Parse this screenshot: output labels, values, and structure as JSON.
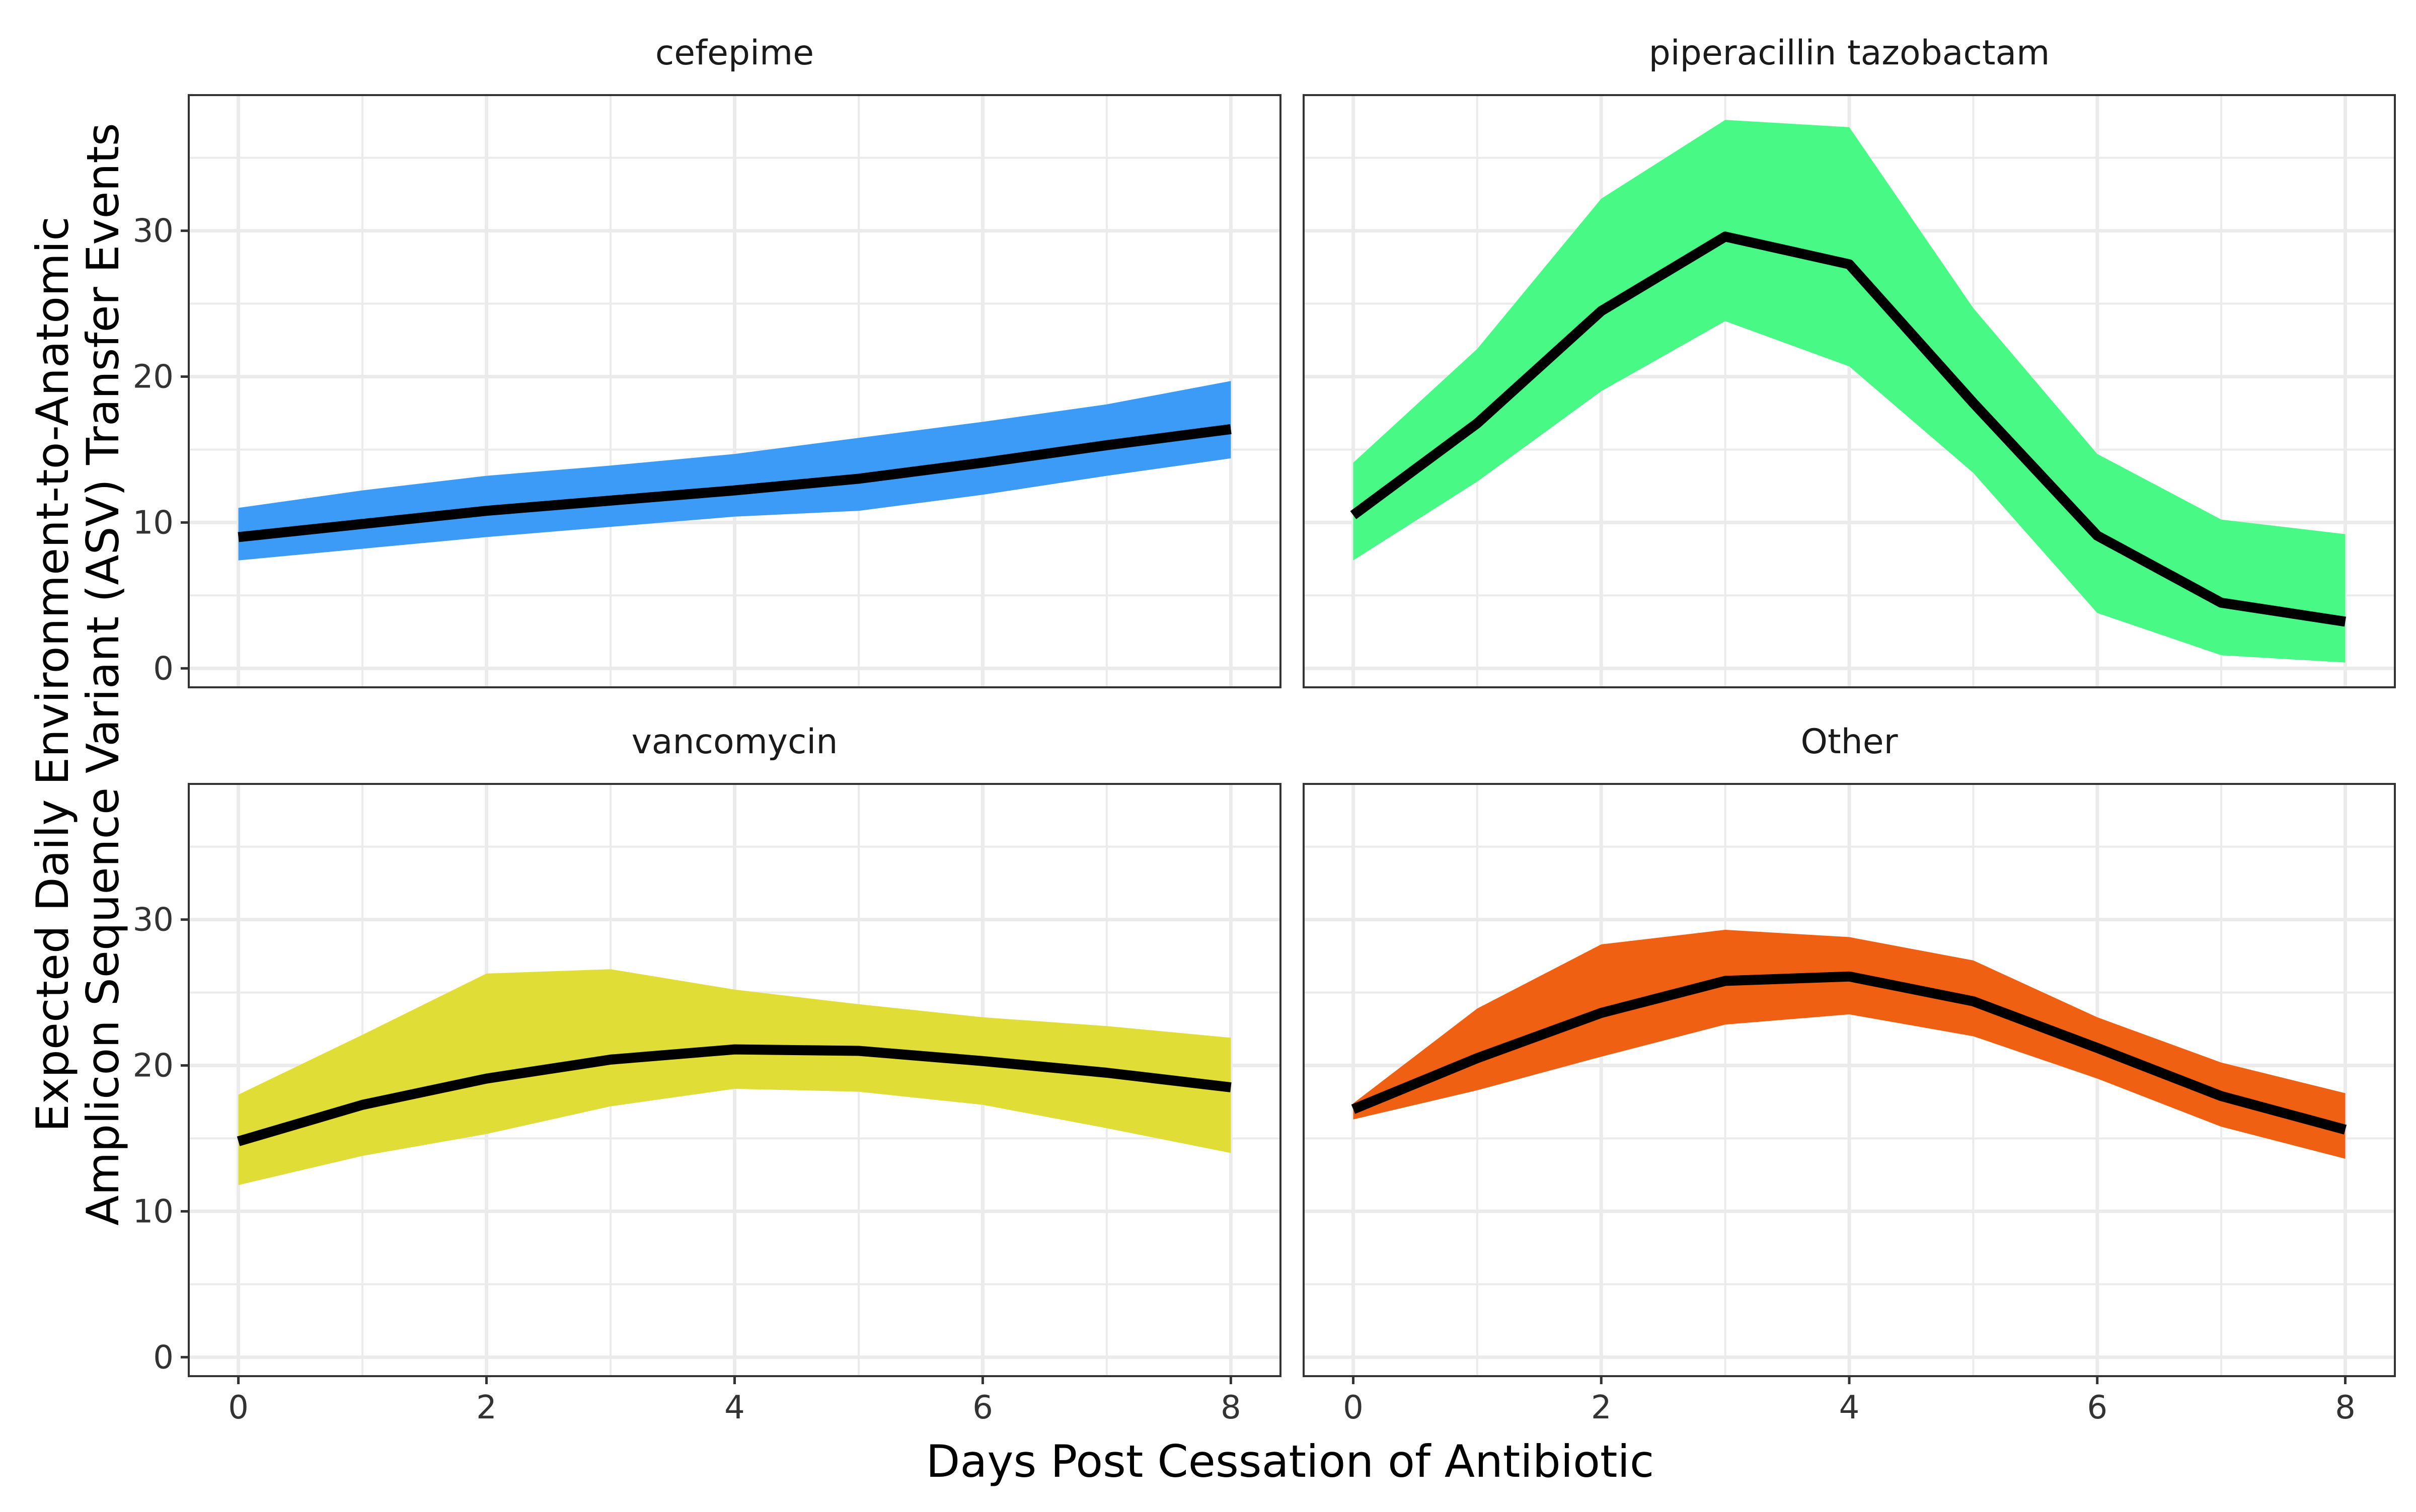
{
  "chart_data": {
    "type": "area",
    "xlabel": "Days Post Cessation of Antibiotic",
    "ylabel": [
      "Expected Daily Environment-to-Anatomic",
      "Amplicon Sequence Variant (ASV) Transfer Events"
    ],
    "xlim": [
      -0.4,
      8.4
    ],
    "ylim": [
      -1.3,
      39.3
    ],
    "xticks": [
      0,
      2,
      4,
      6,
      8
    ],
    "yticks": [
      0,
      10,
      20,
      30
    ],
    "grid": true,
    "x": [
      0,
      1,
      2,
      3,
      4,
      5,
      6,
      7,
      8
    ],
    "panels": [
      {
        "title": "cefepime",
        "color": "#3d9bf8",
        "mean": [
          9.0,
          9.9,
          10.8,
          11.5,
          12.2,
          13.0,
          14.1,
          15.3,
          16.4
        ],
        "lower": [
          7.4,
          8.2,
          9.0,
          9.7,
          10.4,
          10.8,
          11.9,
          13.2,
          14.4
        ],
        "upper": [
          11.0,
          12.2,
          13.2,
          13.9,
          14.7,
          15.8,
          16.9,
          18.1,
          19.7
        ]
      },
      {
        "title": "piperacillin tazobactam",
        "color": "#49f985",
        "mean": [
          10.5,
          16.8,
          24.5,
          29.6,
          27.7,
          18.2,
          9.1,
          4.5,
          3.2
        ],
        "lower": [
          7.4,
          12.8,
          19.0,
          23.8,
          20.7,
          13.4,
          3.8,
          0.9,
          0.4
        ],
        "upper": [
          14.1,
          21.9,
          32.2,
          37.6,
          37.1,
          24.7,
          14.7,
          10.2,
          9.2
        ]
      },
      {
        "title": "vancomycin",
        "color": "#e0de36",
        "mean": [
          14.8,
          17.3,
          19.1,
          20.4,
          21.1,
          21.0,
          20.3,
          19.5,
          18.5
        ],
        "lower": [
          11.8,
          13.8,
          15.3,
          17.2,
          18.4,
          18.2,
          17.3,
          15.7,
          14.0
        ],
        "upper": [
          18.0,
          22.1,
          26.3,
          26.6,
          25.2,
          24.2,
          23.3,
          22.7,
          21.9
        ]
      },
      {
        "title": "Other",
        "color": "#f06013",
        "mean": [
          17.0,
          20.5,
          23.6,
          25.8,
          26.1,
          24.4,
          21.2,
          17.9,
          15.6
        ],
        "lower": [
          16.3,
          18.3,
          20.6,
          22.8,
          23.5,
          22.0,
          19.1,
          15.8,
          13.6
        ],
        "upper": [
          17.4,
          23.9,
          28.3,
          29.3,
          28.8,
          27.2,
          23.3,
          20.2,
          18.1
        ]
      }
    ]
  }
}
